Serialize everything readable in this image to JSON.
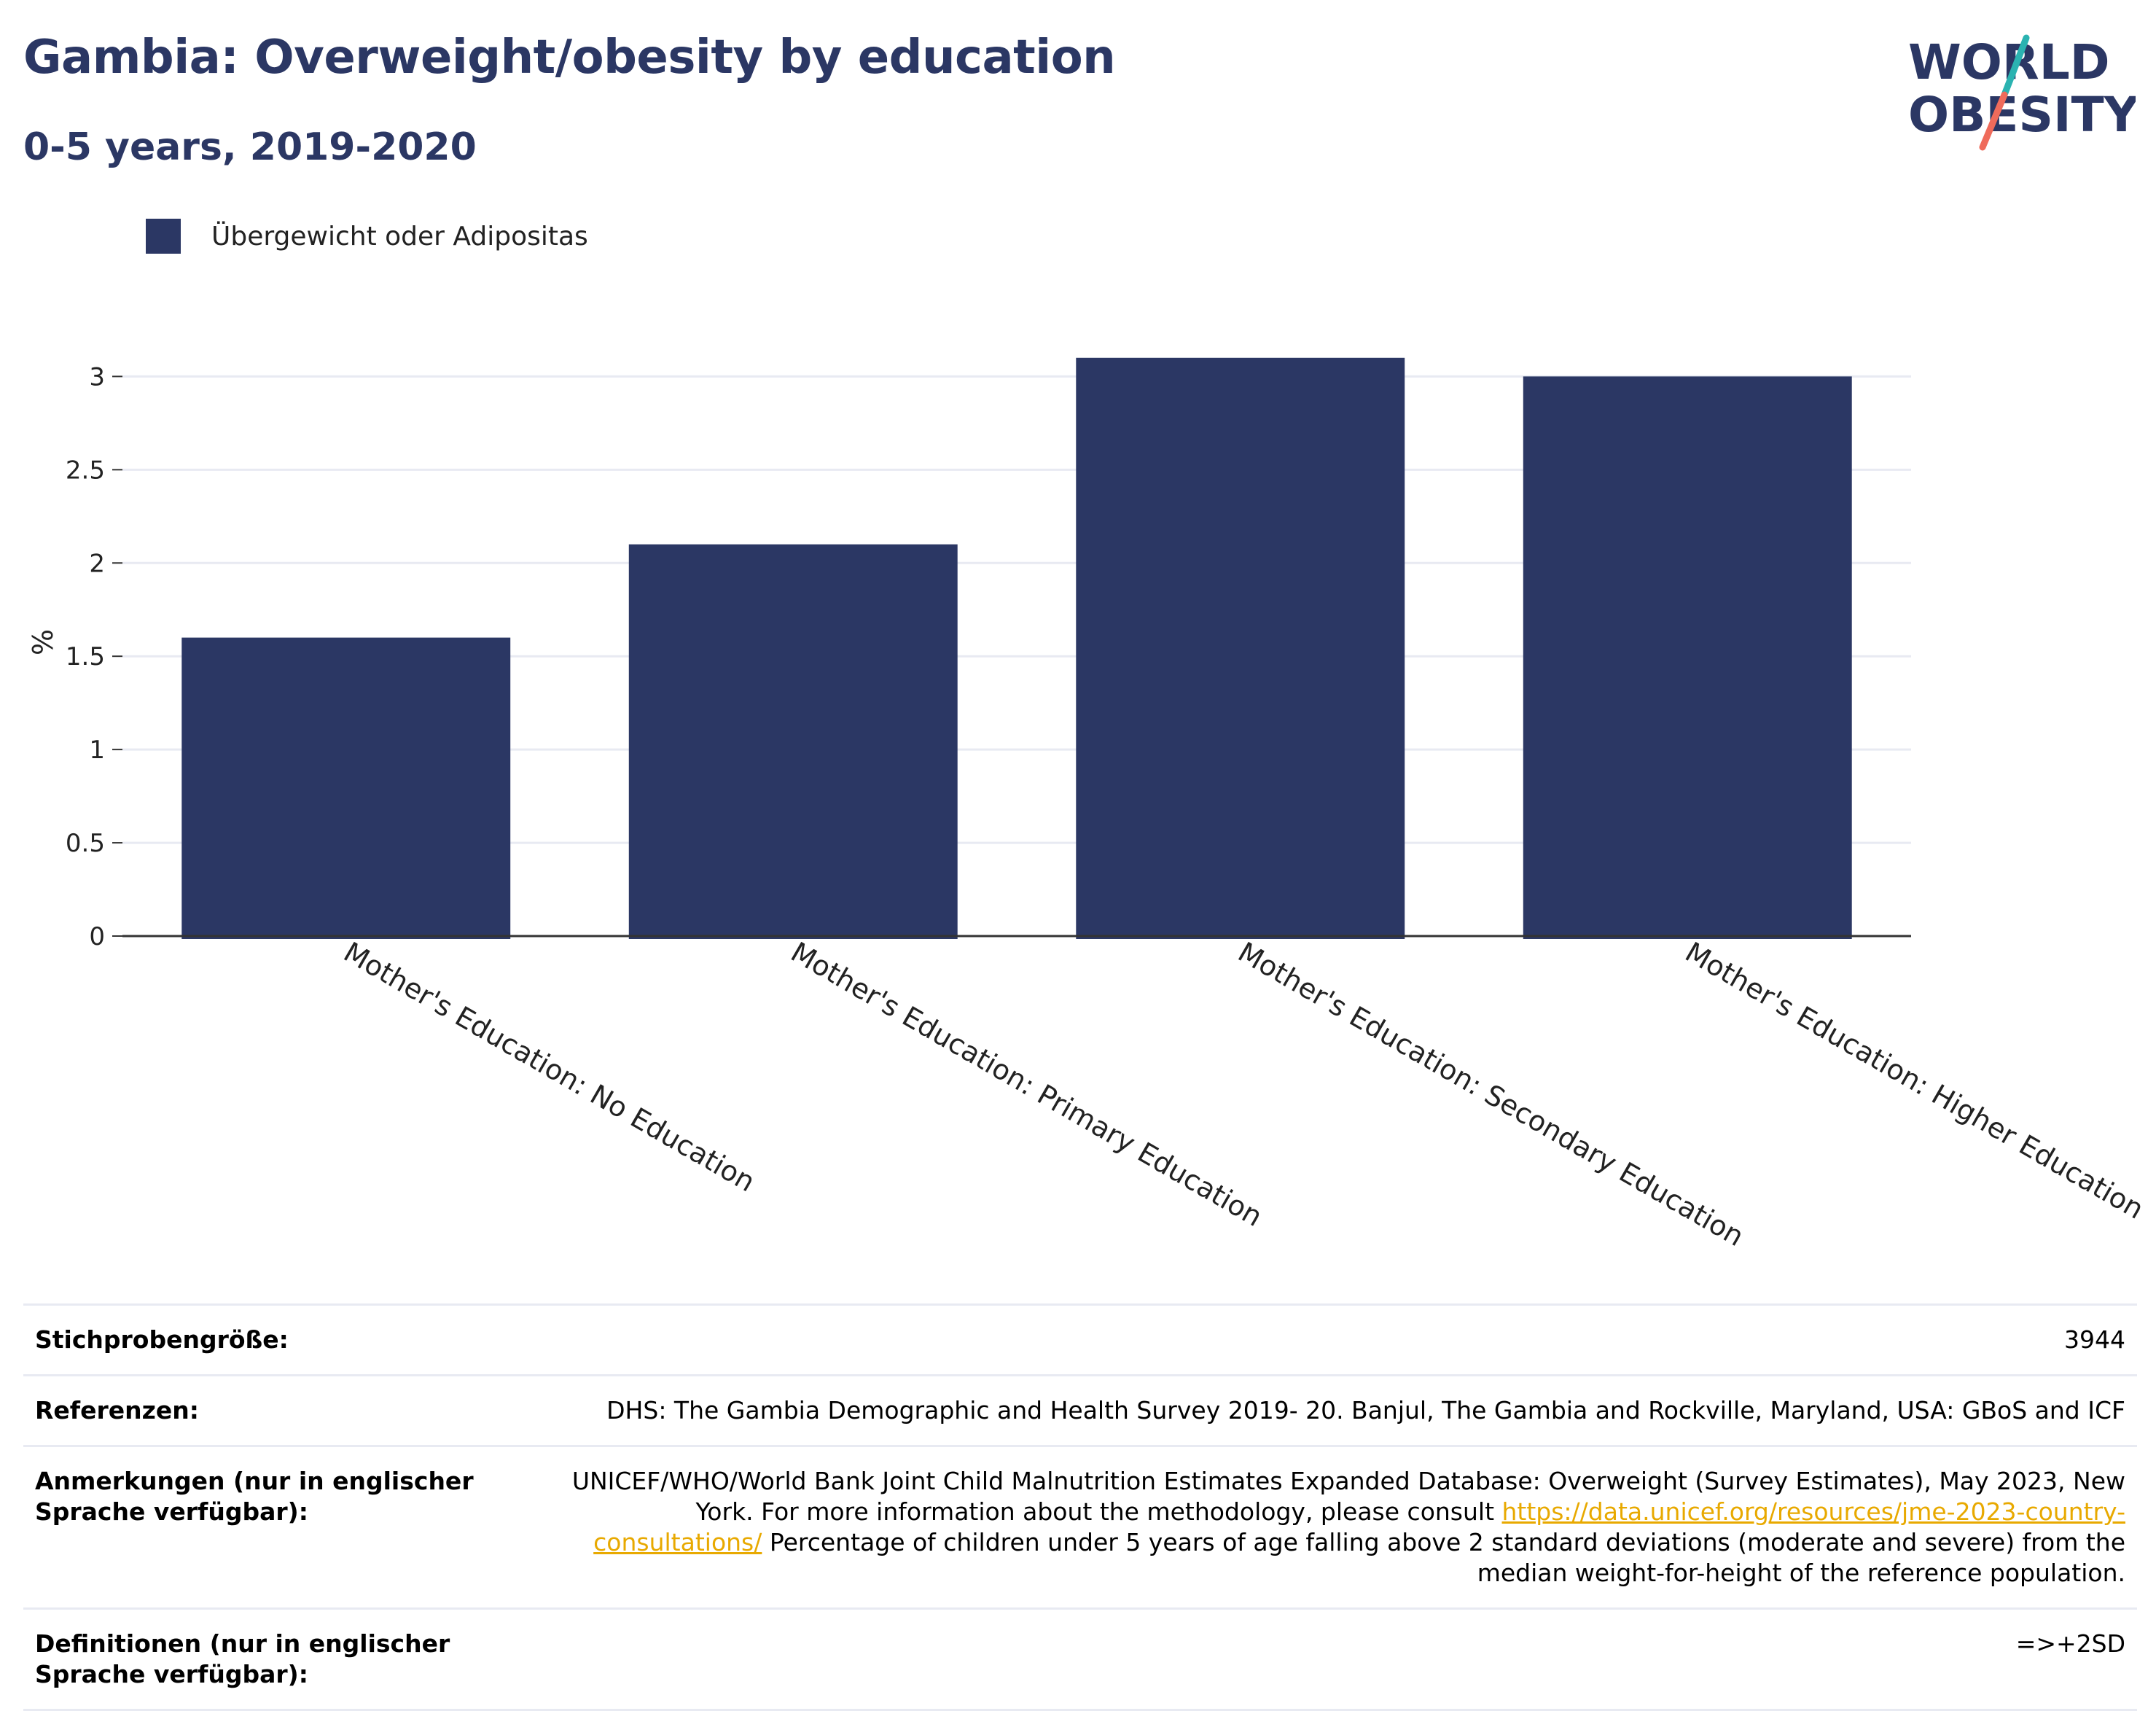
{
  "header": {
    "title": "Gambia: Overweight/obesity by education",
    "subtitle": "0-5 years, 2019-2020"
  },
  "logo": {
    "line1": "WORLD",
    "line2": "OBESITY",
    "colors": {
      "text": "#2b3764",
      "slash_top": "#2bb3b1",
      "slash_bottom": "#ef6b5b"
    }
  },
  "colors": {
    "bar": "#2b3764",
    "grid": "#e8eaf2",
    "axis": "#333333",
    "link": "#e8a900"
  },
  "chart_data": {
    "type": "bar",
    "title": "Gambia: Overweight/obesity by education",
    "subtitle": "0-5 years, 2019-2020",
    "categories": [
      "Mother's Education: No Education",
      "Mother's Education: Primary Education",
      "Mother's Education: Secondary Education",
      "Mother's Education: Higher Education"
    ],
    "series": [
      {
        "name": "Übergewicht oder Adipositas",
        "values": [
          1.6,
          2.1,
          3.1,
          3.0
        ],
        "color": "#2b3764"
      }
    ],
    "xlabel": "",
    "ylabel": "%",
    "ylim": [
      0,
      3.15
    ],
    "yticks": [
      0,
      0.5,
      1,
      1.5,
      2,
      2.5,
      3
    ],
    "ytick_labels": [
      "0",
      "0.5",
      "1",
      "1.5",
      "2",
      "2.5",
      "3"
    ],
    "grid": true,
    "legend": "top-left"
  },
  "meta": {
    "rows": [
      {
        "label": "Stichprobengröße:",
        "value": "3944"
      },
      {
        "label": "Referenzen:",
        "value": "DHS: The Gambia Demographic and Health Survey 2019- 20. Banjul, The Gambia and Rockville, Maryland, USA: GBoS and ICF"
      },
      {
        "label": "Anmerkungen (nur in englischer Sprache verfügbar):",
        "value_pre": "UNICEF/WHO/World Bank Joint Child Malnutrition Estimates Expanded Database: Overweight (Survey Estimates), May 2023, New York. For more information about the methodology, please consult ",
        "link": "https://data.unicef.org/resources/jme-2023-country-consultations/",
        "value_post": " Percentage of children under 5 years of age falling above 2 standard deviations (moderate and severe) from the median weight-for-height of the reference population."
      },
      {
        "label": "Definitionen (nur in englischer Sprache verfügbar):",
        "value": "=>+2SD"
      }
    ]
  }
}
